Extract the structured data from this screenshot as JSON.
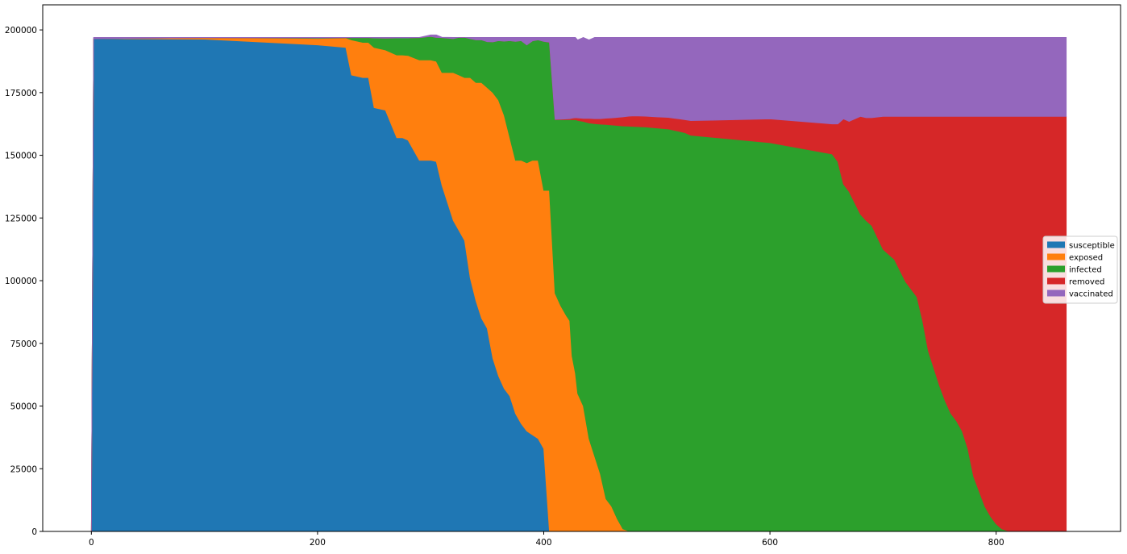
{
  "chart_data": {
    "type": "area",
    "title": "",
    "xlabel": "",
    "ylabel": "",
    "xlim": [
      -43,
      910
    ],
    "ylim": [
      0,
      210000
    ],
    "x_ticks": [
      0,
      200,
      400,
      600,
      800
    ],
    "y_ticks": [
      0,
      25000,
      50000,
      75000,
      100000,
      125000,
      150000,
      175000,
      200000
    ],
    "x_tick_labels": [
      "0",
      "200",
      "400",
      "600",
      "800"
    ],
    "y_tick_labels": [
      "0",
      "25000",
      "50000",
      "75000",
      "100000",
      "125000",
      "150000",
      "175000",
      "200000"
    ],
    "legend_position": "center-right",
    "total": 197000,
    "x": [
      0,
      2,
      100,
      200,
      225,
      230,
      240,
      245,
      250,
      260,
      270,
      275,
      280,
      290,
      300,
      305,
      310,
      320,
      325,
      330,
      335,
      340,
      345,
      350,
      355,
      360,
      365,
      370,
      375,
      380,
      385,
      390,
      395,
      400,
      405,
      410,
      415,
      420,
      423,
      425,
      428,
      430,
      435,
      440,
      445,
      450,
      455,
      460,
      465,
      470,
      475,
      480,
      490,
      500,
      510,
      515,
      520,
      525,
      530,
      600,
      655,
      660,
      665,
      670,
      680,
      685,
      690,
      700,
      705,
      710,
      720,
      730,
      735,
      740,
      745,
      750,
      755,
      760,
      765,
      770,
      775,
      780,
      785,
      790,
      795,
      800,
      805,
      810,
      815,
      820,
      825,
      830,
      835,
      840,
      845,
      850,
      855,
      858,
      860,
      862
    ],
    "series": [
      {
        "name": "susceptible",
        "color": "#1f77b4",
        "values": [
          0,
          196500,
          196300,
          194000,
          193000,
          182000,
          181000,
          181000,
          169000,
          168000,
          157000,
          157000,
          156000,
          148000,
          148000,
          147500,
          138000,
          124000,
          120000,
          116000,
          101000,
          92000,
          85000,
          81000,
          69000,
          62000,
          57000,
          54000,
          47000,
          43000,
          40000,
          38500,
          37000,
          33000,
          0,
          0,
          0,
          0,
          0,
          0,
          0,
          0,
          0,
          0,
          0,
          0,
          0,
          0,
          0,
          0,
          0,
          0,
          0,
          0,
          0,
          0,
          0,
          0,
          0,
          0,
          0,
          0,
          0,
          0,
          0,
          0,
          0,
          0,
          0,
          0,
          0,
          0,
          0,
          0,
          0,
          0,
          0,
          0,
          0,
          0,
          0,
          0,
          0,
          0,
          0,
          0,
          0,
          0,
          0,
          0,
          0,
          0,
          0,
          0,
          0,
          0,
          0,
          0,
          0,
          0
        ]
      },
      {
        "name": "exposed",
        "color": "#ff7f0e",
        "values": [
          0,
          0,
          600,
          2600,
          3800,
          14000,
          14000,
          14000,
          24000,
          24000,
          33000,
          33000,
          33800,
          40000,
          40000,
          40000,
          45000,
          59000,
          62000,
          65000,
          80000,
          87000,
          94000,
          96000,
          106000,
          110000,
          109000,
          103000,
          101000,
          105000,
          107000,
          109500,
          111000,
          103000,
          136000,
          95000,
          90000,
          86000,
          84000,
          70000,
          63000,
          55000,
          50000,
          37000,
          30000,
          23000,
          13000,
          10000,
          5000,
          1000,
          200,
          0,
          0,
          0,
          0,
          0,
          0,
          0,
          0,
          0,
          0,
          0,
          0,
          0,
          0,
          0,
          0,
          0,
          0,
          0,
          0,
          0,
          0,
          0,
          0,
          0,
          0,
          0,
          0,
          0,
          0,
          0,
          0,
          0,
          0,
          0,
          0,
          0,
          0,
          0,
          0,
          0,
          0,
          0,
          0,
          0,
          0,
          0,
          0,
          0
        ]
      },
      {
        "name": "infected",
        "color": "#2ca02c",
        "values": [
          0,
          0,
          0,
          200,
          100,
          900,
          1900,
          1900,
          3800,
          4700,
          6800,
          6800,
          7000,
          8900,
          9400,
          9500,
          13900,
          13500,
          15000,
          16000,
          15500,
          17000,
          17000,
          18300,
          20200,
          23700,
          29500,
          38700,
          47400,
          47700,
          47000,
          47600,
          48000,
          59400,
          59000,
          69200,
          74200,
          78200,
          80200,
          94200,
          101200,
          108900,
          113500,
          125900,
          132600,
          139400,
          149300,
          152100,
          156900,
          160700,
          161400,
          161500,
          161300,
          160900,
          160500,
          160000,
          159500,
          159000,
          158000,
          155000,
          150500,
          147500,
          138500,
          135500,
          126500,
          124000,
          122000,
          112500,
          110500,
          108500,
          99500,
          93500,
          84000,
          72000,
          65000,
          58000,
          52000,
          47000,
          44000,
          40000,
          33000,
          22000,
          16000,
          10000,
          6000,
          3000,
          1000,
          300,
          0,
          0,
          0,
          0,
          0,
          0,
          0,
          0,
          0,
          0,
          0,
          0
        ]
      },
      {
        "name": "removed",
        "color": "#d62728",
        "values": [
          0,
          0,
          0,
          0,
          0,
          0,
          0,
          0,
          0,
          0,
          0,
          0,
          0,
          0,
          0,
          0,
          0,
          0,
          0,
          0,
          0,
          0,
          0,
          0,
          0,
          0,
          0,
          0,
          0,
          0,
          0,
          0,
          0,
          0,
          100,
          100,
          200,
          300,
          400,
          600,
          800,
          1000,
          1200,
          1800,
          2000,
          2200,
          2500,
          2800,
          3200,
          3600,
          4000,
          4200,
          4300,
          4400,
          4600,
          4800,
          5000,
          5200,
          5800,
          9500,
          12000,
          15000,
          26000,
          28000,
          39000,
          41000,
          43000,
          53000,
          55000,
          57000,
          66000,
          72000,
          81500,
          93500,
          100500,
          107500,
          113500,
          118500,
          121500,
          125500,
          132500,
          143500,
          149500,
          155500,
          159500,
          162500,
          164500,
          165200,
          165500,
          165500,
          165500,
          165500,
          165500,
          165500,
          165500,
          165500,
          165500,
          165500,
          165500,
          165500
        ]
      },
      {
        "name": "vaccinated",
        "color": "#9467bd",
        "values": [
          0,
          500,
          100,
          200,
          100,
          100,
          100,
          100,
          200,
          300,
          200,
          200,
          200,
          100,
          600,
          1000,
          200,
          500,
          0,
          0,
          500,
          1000,
          1000,
          1700,
          1800,
          1300,
          1500,
          1300,
          1600,
          1300,
          3000,
          1400,
          1000,
          1600,
          1900,
          32700,
          32600,
          32500,
          32400,
          32200,
          32000,
          31100,
          32300,
          31300,
          32400,
          32400,
          32200,
          32100,
          31900,
          31700,
          31400,
          31300,
          31400,
          31700,
          31900,
          32200,
          32500,
          32800,
          33200,
          32500,
          34500,
          34500,
          32500,
          33500,
          31500,
          32000,
          32000,
          31500,
          31500,
          31500,
          31500,
          31500,
          31500,
          31500,
          31500,
          31500,
          31500,
          31500,
          31500,
          31500,
          31500,
          31500,
          31500,
          31500,
          31500,
          31500,
          31500,
          31500,
          31500,
          31500,
          31500,
          31500,
          31500,
          31500,
          31500,
          31500,
          31500,
          31500,
          31500,
          31500
        ]
      }
    ]
  }
}
